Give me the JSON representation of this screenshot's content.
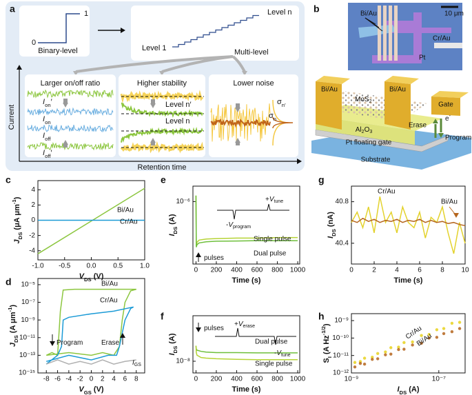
{
  "panel_a": {
    "letter": "a",
    "bin_low": "0",
    "bin_high": "1",
    "binary": "Binary-level",
    "level1": "Level 1",
    "leveln": "Level n",
    "multi": "Multi-level",
    "box1": "Larger on/off ratio",
    "box2": "Higher stability",
    "box3": "Lower noise",
    "ylabel": "Current",
    "xlabel": "Retention time",
    "ion2": [
      [
        "I",
        "i"
      ],
      [
        "on",
        "sub"
      ],
      [
        "′",
        "n"
      ]
    ],
    "ion": [
      [
        "I",
        "i"
      ],
      [
        "on",
        "sub"
      ]
    ],
    "ioff": [
      [
        "I",
        "i"
      ],
      [
        "off",
        "sub"
      ]
    ],
    "ioff2": [
      [
        "I",
        "i"
      ],
      [
        "off",
        "sub"
      ],
      [
        "′",
        "n"
      ]
    ],
    "lvn2": "Level n′",
    "lvn": "Level n",
    "sig2": [
      [
        "σ",
        "n"
      ],
      [
        "n′",
        "sub"
      ]
    ],
    "sig1": [
      [
        "σ",
        "n"
      ],
      [
        "n",
        "sub"
      ]
    ]
  },
  "panel_b": {
    "letter": "b",
    "bi_top": "Bi/Au",
    "scale": "10 μm",
    "pt": "Pt",
    "cr": "Cr/Au",
    "bi_left": "Bi/Au",
    "bi_right": "Bi/Au",
    "mos2": [
      [
        "MoS",
        "n"
      ],
      [
        "2",
        "sub"
      ]
    ],
    "gate": "Gate",
    "erase": "Erase",
    "electron": [
      [
        "e",
        "n"
      ],
      [
        "-",
        "sup"
      ]
    ],
    "program": "Program",
    "al2o3": [
      [
        "Al",
        "n"
      ],
      [
        "2",
        "sub"
      ],
      [
        "O",
        "n"
      ],
      [
        "3",
        "sub"
      ]
    ],
    "ptgate": "Pt floating gate",
    "substrate": "Substrate"
  },
  "chart_data": [
    {
      "letter": "c",
      "type": "line",
      "xlabel": [
        [
          "V",
          "i"
        ],
        [
          "DS",
          "sub"
        ],
        [
          " (V)",
          "n"
        ]
      ],
      "ylabel": [
        [
          "J",
          "i"
        ],
        [
          "DS",
          "sub"
        ],
        [
          " (μA μm",
          "n"
        ],
        [
          "-1",
          "sup"
        ],
        [
          ")",
          "n"
        ]
      ],
      "xlim": [
        -1,
        1
      ],
      "xticks": [
        {
          "value": -1,
          "label": "-1.0"
        },
        {
          "value": -0.5,
          "label": "-0.5"
        },
        {
          "value": 0,
          "label": "0.0"
        },
        {
          "value": 0.5,
          "label": "0.5"
        },
        {
          "value": 1,
          "label": "1.0"
        }
      ],
      "ylim": [
        -5.2,
        5.2
      ],
      "yticks": [
        -4,
        -2,
        0,
        2,
        4
      ],
      "series": [
        {
          "name": "Bi/Au",
          "color": "#8cc63f",
          "x": [
            -1,
            1
          ],
          "values": [
            -4.4,
            4.2
          ]
        },
        {
          "name": "Cr/Au",
          "color": "#1a9ad6",
          "x": [
            -1,
            1
          ],
          "values": [
            0,
            0
          ]
        }
      ]
    },
    {
      "letter": "e",
      "type": "line",
      "ylog": true,
      "xlabel": [
        [
          "Time (s)",
          "n"
        ]
      ],
      "ylabel": [
        [
          "I",
          "i"
        ],
        [
          "DS",
          "sub"
        ],
        [
          " (A)",
          "n"
        ]
      ],
      "xlim": [
        -30,
        1020
      ],
      "xticks": [
        0,
        200,
        400,
        600,
        800,
        1000
      ],
      "ylim": [
        1.5e-07,
        1.6e-06
      ],
      "yticks": [
        {
          "value": 1e-06,
          "label": "10⁻⁶"
        }
      ],
      "annotations": [
        [
          [
            "pulses",
            "n"
          ]
        ],
        [
          [
            "-",
            "n"
          ],
          [
            "V",
            "i"
          ],
          [
            "program",
            "sub"
          ]
        ],
        [
          [
            "+",
            "n"
          ],
          [
            "V",
            "i"
          ],
          [
            "tune",
            "sub"
          ]
        ]
      ],
      "series": [
        {
          "name": "Single pulse",
          "color": "#b5d334",
          "x": [
            0,
            3,
            10,
            30,
            100,
            200,
            400,
            600,
            800,
            1000
          ],
          "values": [
            1.2e-06,
            2.6e-07,
            2.9e-07,
            3.1e-07,
            3.2e-07,
            3.25e-07,
            3.3e-07,
            3.3e-07,
            3.35e-07,
            3.35e-07
          ]
        },
        {
          "name": "Dual pulse",
          "color": "#6dbf3a",
          "x": [
            0,
            3,
            10,
            30,
            100,
            200,
            400,
            600,
            800,
            1000
          ],
          "values": [
            1.2e-06,
            2.5e-07,
            2.7e-07,
            2.85e-07,
            2.95e-07,
            3e-07,
            3.02e-07,
            3.05e-07,
            3.05e-07,
            3.05e-07
          ]
        }
      ]
    },
    {
      "letter": "g",
      "type": "line",
      "xlabel": [
        [
          "Time (s)",
          "n"
        ]
      ],
      "ylabel": [
        [
          "I",
          "i"
        ],
        [
          "DS",
          "sub"
        ],
        [
          " (nA)",
          "n"
        ]
      ],
      "xlim": [
        0,
        10
      ],
      "xticks": [
        0,
        2,
        4,
        6,
        8,
        10
      ],
      "ylim": [
        40.2,
        40.95
      ],
      "yticks": [
        40.4,
        40.8
      ],
      "series": [
        {
          "name": "Cr/Au",
          "color": "#e3d22c",
          "x": [
            0,
            0.5,
            1,
            1.5,
            2,
            2.5,
            3,
            3.5,
            4,
            4.5,
            5,
            5.5,
            6,
            6.5,
            7,
            7.5,
            8,
            8.5,
            9,
            9.5,
            10
          ],
          "values": [
            40.6,
            40.7,
            40.55,
            40.75,
            40.5,
            40.85,
            40.6,
            40.7,
            40.5,
            40.75,
            40.6,
            40.55,
            40.7,
            40.45,
            40.65,
            40.6,
            40.75,
            40.5,
            40.3,
            40.6,
            40.4
          ]
        },
        {
          "name": "Bi/Au",
          "color": "#b5651d",
          "x": [
            0,
            0.5,
            1,
            1.5,
            2,
            2.5,
            3,
            3.5,
            4,
            4.5,
            5,
            5.5,
            6,
            6.5,
            7,
            7.5,
            8,
            8.5,
            9,
            9.5,
            10
          ],
          "values": [
            40.62,
            40.6,
            40.64,
            40.61,
            40.63,
            40.6,
            40.62,
            40.61,
            40.63,
            40.6,
            40.62,
            40.61,
            40.63,
            40.6,
            40.62,
            40.6,
            40.61,
            40.59,
            40.6,
            40.58,
            40.57
          ]
        }
      ]
    },
    {
      "letter": "d",
      "type": "line",
      "ylog": true,
      "xlabel": [
        [
          "V",
          "i"
        ],
        [
          "GS",
          "sub"
        ],
        [
          " (V)",
          "n"
        ]
      ],
      "ylabel": [
        [
          "J",
          "i"
        ],
        [
          "DS",
          "sub"
        ],
        [
          " (A μm",
          "n"
        ],
        [
          "-1",
          "sup"
        ],
        [
          ")",
          "n"
        ]
      ],
      "xlim": [
        -9.5,
        9.5
      ],
      "xticks": [
        -8,
        -6,
        -4,
        -2,
        0,
        2,
        4,
        6,
        8
      ],
      "ylim": [
        1e-15,
        5e-05
      ],
      "yticks": [
        {
          "value": 1e-15,
          "label": "10⁻¹⁵"
        },
        {
          "value": 1e-13,
          "label": "10⁻¹³"
        },
        {
          "value": 1e-11,
          "label": "10⁻¹¹"
        },
        {
          "value": 1e-09,
          "label": "10⁻⁹"
        },
        {
          "value": 1e-07,
          "label": "10⁻⁷"
        },
        {
          "value": 1e-05,
          "label": "10⁻⁵"
        }
      ],
      "annotations": [
        [
          [
            "Program",
            "n"
          ]
        ],
        [
          [
            "Erase",
            "n"
          ]
        ],
        [
          [
            "I",
            "i"
          ],
          [
            "GS",
            "sub"
          ]
        ]
      ],
      "series": [
        {
          "name": "Bi/Au",
          "color": "#8cc63f",
          "x": [
            -8,
            -4,
            0,
            2,
            4,
            5,
            5.5,
            6,
            7,
            8,
            8,
            4,
            0,
            -3,
            -5,
            -5.5,
            -6,
            -7,
            -8
          ],
          "values": [
            1e-13,
            2e-13,
            1e-13,
            2e-13,
            1e-13,
            1e-12,
            1e-09,
            1e-07,
            2e-06,
            3e-06,
            3e-06,
            3e-06,
            3e-06,
            3e-06,
            2.5e-06,
            1e-08,
            1e-13,
            2e-13,
            1e-13
          ]
        },
        {
          "name": "Cr/Au",
          "color": "#1a9ad6",
          "x": [
            -8,
            -4,
            0,
            3,
            4.5,
            5,
            6,
            7,
            7.5,
            7.5,
            4,
            0,
            -4,
            -5,
            -5.3,
            -6,
            -8
          ],
          "values": [
            2e-14,
            1e-13,
            3e-14,
            1e-13,
            1e-13,
            1e-12,
            1e-09,
            2e-08,
            3e-08,
            3e-08,
            1e-08,
            5e-09,
            2e-09,
            1e-09,
            1e-12,
            1e-13,
            1e-14
          ]
        },
        {
          "color": "#b0b0b0",
          "x": [
            -8,
            -6,
            -4,
            -2,
            0,
            2,
            4,
            6,
            8
          ],
          "values": [
            1e-14,
            3e-14,
            1e-14,
            2e-14,
            1e-14,
            3e-14,
            1e-14,
            2e-14,
            3e-14
          ]
        }
      ]
    },
    {
      "letter": "f",
      "type": "line",
      "ylog": true,
      "xlabel": [
        [
          "Time (s)",
          "n"
        ]
      ],
      "ylabel": [
        [
          "I",
          "i"
        ],
        [
          "DS",
          "sub"
        ],
        [
          " (A)",
          "n"
        ]
      ],
      "xlim": [
        -30,
        1020
      ],
      "xticks": [
        0,
        200,
        400,
        600,
        800,
        1000
      ],
      "ylim": [
        7e-09,
        4e-08
      ],
      "yticks": [
        {
          "value": 1e-08,
          "label": "10⁻⁸"
        }
      ],
      "annotations": [
        [
          [
            "pulses",
            "n"
          ]
        ],
        [
          [
            "+",
            "n"
          ],
          [
            "V",
            "i"
          ],
          [
            "erase",
            "sub"
          ]
        ],
        [
          [
            "-",
            "n"
          ],
          [
            "V",
            "i"
          ],
          [
            "tune",
            "sub"
          ]
        ]
      ],
      "series": [
        {
          "name": "Dual pulse",
          "color": "#6dbf3a",
          "x": [
            0,
            3,
            10,
            50,
            100,
            200,
            400,
            600,
            800,
            1000
          ],
          "values": [
            1.6e-08,
            1.45e-08,
            1.4e-08,
            1.35e-08,
            1.32e-08,
            1.3e-08,
            1.3e-08,
            1.29e-08,
            1.29e-08,
            1.29e-08
          ]
        },
        {
          "name": "Single pulse",
          "color": "#b5d334",
          "x": [
            0,
            3,
            10,
            50,
            100,
            200,
            400,
            600,
            800,
            1000
          ],
          "values": [
            1.6e-08,
            1.3e-08,
            1.2e-08,
            1.12e-08,
            1.1e-08,
            1.08e-08,
            1.06e-08,
            1.05e-08,
            1.05e-08,
            1.05e-08
          ]
        }
      ]
    },
    {
      "letter": "h",
      "type": "scatter",
      "xlog": true,
      "ylog": true,
      "xlabel": [
        [
          "I",
          "i"
        ],
        [
          "DS",
          "sub"
        ],
        [
          " (A)",
          "n"
        ]
      ],
      "ylabel": [
        [
          "S",
          "n"
        ],
        [
          "I",
          "sub"
        ],
        [
          " (A Hz",
          "n"
        ],
        [
          "-1/2",
          "sup"
        ],
        [
          ")",
          "n"
        ]
      ],
      "xlim": [
        1e-09,
        4e-07
      ],
      "xticks": [
        {
          "value": 1e-09,
          "label": "10⁻⁹"
        },
        {
          "value": 1e-07,
          "label": "10⁻⁷"
        }
      ],
      "ylim": [
        1e-12,
        2.5e-09
      ],
      "yticks": [
        {
          "value": 1e-12,
          "label": "10⁻¹²"
        },
        {
          "value": 1e-11,
          "label": "10⁻¹¹"
        },
        {
          "value": 1e-10,
          "label": "10⁻¹⁰"
        },
        {
          "value": 1e-09,
          "label": "10⁻⁹"
        }
      ],
      "series": [
        {
          "name": "Cr/Au",
          "color": "#e8d21f",
          "x": [
            1.2e-09,
            1.6e-09,
            2e-09,
            3e-09,
            4e-09,
            6e-09,
            8e-09,
            1.2e-08,
            1.6e-08,
            2.5e-08,
            4e-08,
            6e-08,
            9e-08,
            1.3e-07,
            2e-07,
            3e-07
          ],
          "values": [
            4e-12,
            4.5e-12,
            7e-12,
            8e-12,
            1.3e-11,
            1.6e-11,
            2.8e-11,
            3e-11,
            5.5e-11,
            6e-11,
            1.4e-10,
            1.6e-10,
            3e-10,
            3.5e-10,
            7e-10,
            8e-10
          ]
        },
        {
          "name": "Bi/Au",
          "color": "#b5651d",
          "x": [
            1.2e-09,
            1.6e-09,
            2e-09,
            3e-09,
            4e-09,
            6e-09,
            8e-09,
            1.2e-08,
            1.6e-08,
            2.5e-08,
            4e-08,
            6e-08,
            9e-08,
            1.3e-07,
            2e-07,
            3e-07
          ],
          "values": [
            2.2e-12,
            3.5e-12,
            3.2e-12,
            6e-12,
            6.5e-12,
            1.1e-11,
            1.2e-11,
            2.2e-11,
            2.3e-11,
            4e-11,
            5e-11,
            1e-10,
            1.1e-10,
            1.8e-10,
            2.3e-10,
            3.5e-10
          ]
        }
      ]
    }
  ]
}
